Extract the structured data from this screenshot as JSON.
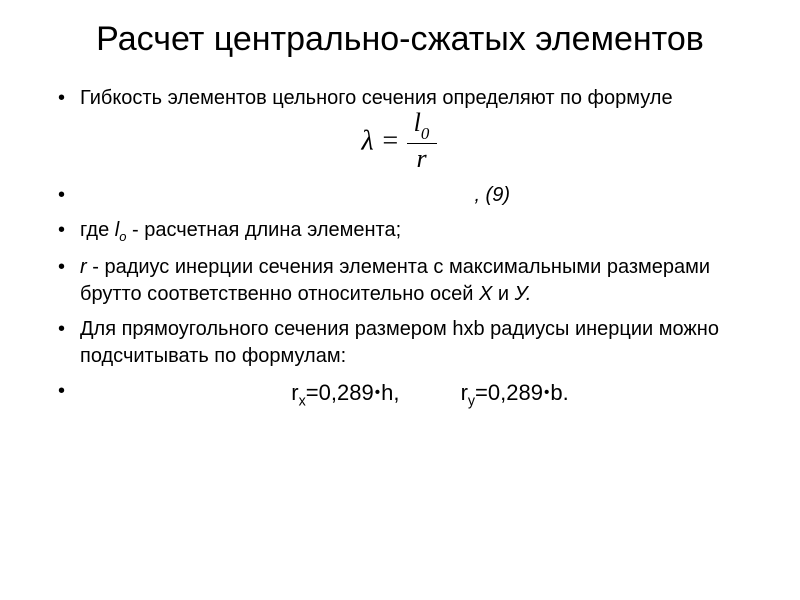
{
  "title": "Расчет центрально-сжатых элементов",
  "bullets": {
    "b1": "Гибкость элементов цельного сечения определяют по формуле",
    "eq_label": ",   (9)",
    "b3_pre": "где ",
    "b3_var": "l",
    "b3_sub": "o",
    "b3_post": " - расчетная длина элемента;",
    "b4_var": "r",
    "b4_post": " - радиус инерции сечения элемента с максимальными размерами брутто соответственно относительно осей ",
    "b4_x": "Х",
    "b4_and": " и ",
    "b4_y": "У.",
    "b5": "Для прямоугольного сечения размером hxb радиусы инерции можно подсчитывать по формулам:",
    "b6_rx_r": "r",
    "b6_rx_sub": "x",
    "b6_rx_eq": "=0,289",
    "b6_rx_var": "h,",
    "b6_gap": "          ",
    "b6_ry_r": "r",
    "b6_ry_sub": "y",
    "b6_ry_eq": "=0,289",
    "b6_ry_var": "b."
  },
  "formula": {
    "lhs": "λ",
    "eq": " = ",
    "numv": "l",
    "numsub": "0",
    "den": "r"
  },
  "style": {
    "bg": "#ffffff",
    "fg": "#000000",
    "title_fontsize": 34,
    "body_fontsize": 20,
    "formula_fontfamily": "Times New Roman",
    "body_fontfamily": "Arial"
  }
}
